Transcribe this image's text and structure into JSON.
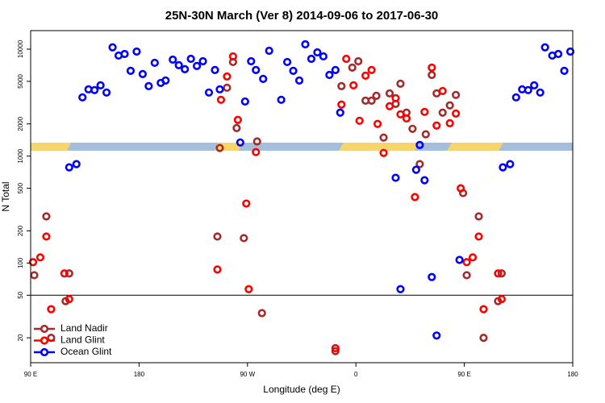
{
  "chart_data": {
    "type": "scatter",
    "title": "25N-30N March (Ver 8)   2014-09-06 to 2017-06-30",
    "x_label": "Longitude (deg E)",
    "y_label": "N Total",
    "xlim": [
      -270,
      180
    ],
    "xticks": [
      {
        "value": -270,
        "label": "90 E"
      },
      {
        "value": -180,
        "label": "180"
      },
      {
        "value": -90,
        "label": "90 W"
      },
      0,
      {
        "value": 90,
        "label": "90 E"
      },
      180
    ],
    "ylim": [
      11.7,
      14900
    ],
    "yticks": [
      20,
      50,
      100,
      200,
      500,
      1000,
      2000,
      5000,
      10000
    ],
    "log_y": true,
    "hline": 50,
    "legend": "lower left",
    "series": [
      {
        "name": "Land Nadir",
        "color": "#a52a2a",
        "x": [
          -267,
          -257,
          -253,
          -241,
          -238,
          -115,
          -113,
          -107,
          -102,
          -99,
          -93,
          -82,
          -78,
          -17,
          -12,
          -3,
          2,
          8,
          13,
          17,
          23,
          28,
          33,
          37,
          42,
          47,
          53,
          58,
          63,
          67,
          72,
          78,
          83,
          89,
          92,
          102,
          106,
          118,
          121
        ],
        "values": [
          77,
          273,
          20,
          44,
          80,
          177,
          1190,
          4360,
          7580,
          1830,
          171,
          1370,
          34,
          15,
          4510,
          6720,
          7710,
          3300,
          3300,
          3660,
          1490,
          3860,
          3080,
          4750,
          2550,
          1800,
          841,
          1600,
          5740,
          3860,
          2550,
          2980,
          3730,
          451,
          77,
          273,
          20,
          44,
          80
        ]
      },
      {
        "name": "Land Glint",
        "color": "#ff0000",
        "x": [
          -268,
          -262,
          -257,
          -253,
          -242,
          -238,
          -115,
          -112,
          -107,
          -102,
          -98,
          -91,
          -89,
          -83,
          -17,
          -12,
          -8,
          -2,
          3,
          8,
          13,
          18,
          23,
          28,
          33,
          37,
          42,
          49,
          57,
          63,
          67,
          72,
          78,
          83,
          87,
          92,
          97,
          102,
          106,
          118,
          121
        ],
        "values": [
          102,
          113,
          177,
          37,
          80,
          46,
          87,
          3360,
          5550,
          8560,
          2180,
          360,
          57,
          1090,
          16,
          3030,
          8120,
          4590,
          2140,
          5650,
          6380,
          2000,
          1070,
          2930,
          3480,
          2460,
          2250,
          414,
          2590,
          6720,
          1930,
          4060,
          2030,
          2500,
          500,
          102,
          113,
          177,
          37,
          80,
          46
        ]
      },
      {
        "name": "Ocean Glint",
        "color": "#0000ff",
        "x": [
          -238,
          -232,
          -227,
          -222,
          -217,
          -212,
          -207,
          -202,
          -197,
          -192,
          -187,
          -182,
          -177,
          -172,
          -167,
          -162,
          -158,
          -152,
          -147,
          -142,
          -137,
          -132,
          -127,
          -122,
          -117,
          -113,
          -96,
          -92,
          -87,
          -83,
          -77,
          -72,
          -62,
          -57,
          -52,
          -47,
          -42,
          -37,
          -32,
          -27,
          -22,
          -17,
          -13,
          33,
          37,
          50,
          53,
          57,
          63,
          67,
          86,
          122,
          128,
          133,
          138,
          143,
          148,
          153,
          157,
          163,
          168,
          173,
          178
        ],
        "values": [
          785,
          841,
          3540,
          4210,
          4140,
          4590,
          3930,
          10400,
          8710,
          9010,
          6270,
          9490,
          5850,
          4510,
          7450,
          4830,
          5090,
          7980,
          7080,
          6490,
          8120,
          6960,
          7710,
          3930,
          6380,
          4210,
          1340,
          3240,
          7710,
          6380,
          5270,
          9660,
          3360,
          7580,
          6270,
          5090,
          11100,
          8120,
          9330,
          8560,
          5740,
          6380,
          2550,
          627,
          57,
          745,
          1270,
          595,
          74,
          21,
          107,
          785,
          841,
          3540,
          4210,
          4140,
          4590,
          3930,
          10400,
          8710,
          9010,
          6270,
          9490
        ]
      }
    ]
  }
}
